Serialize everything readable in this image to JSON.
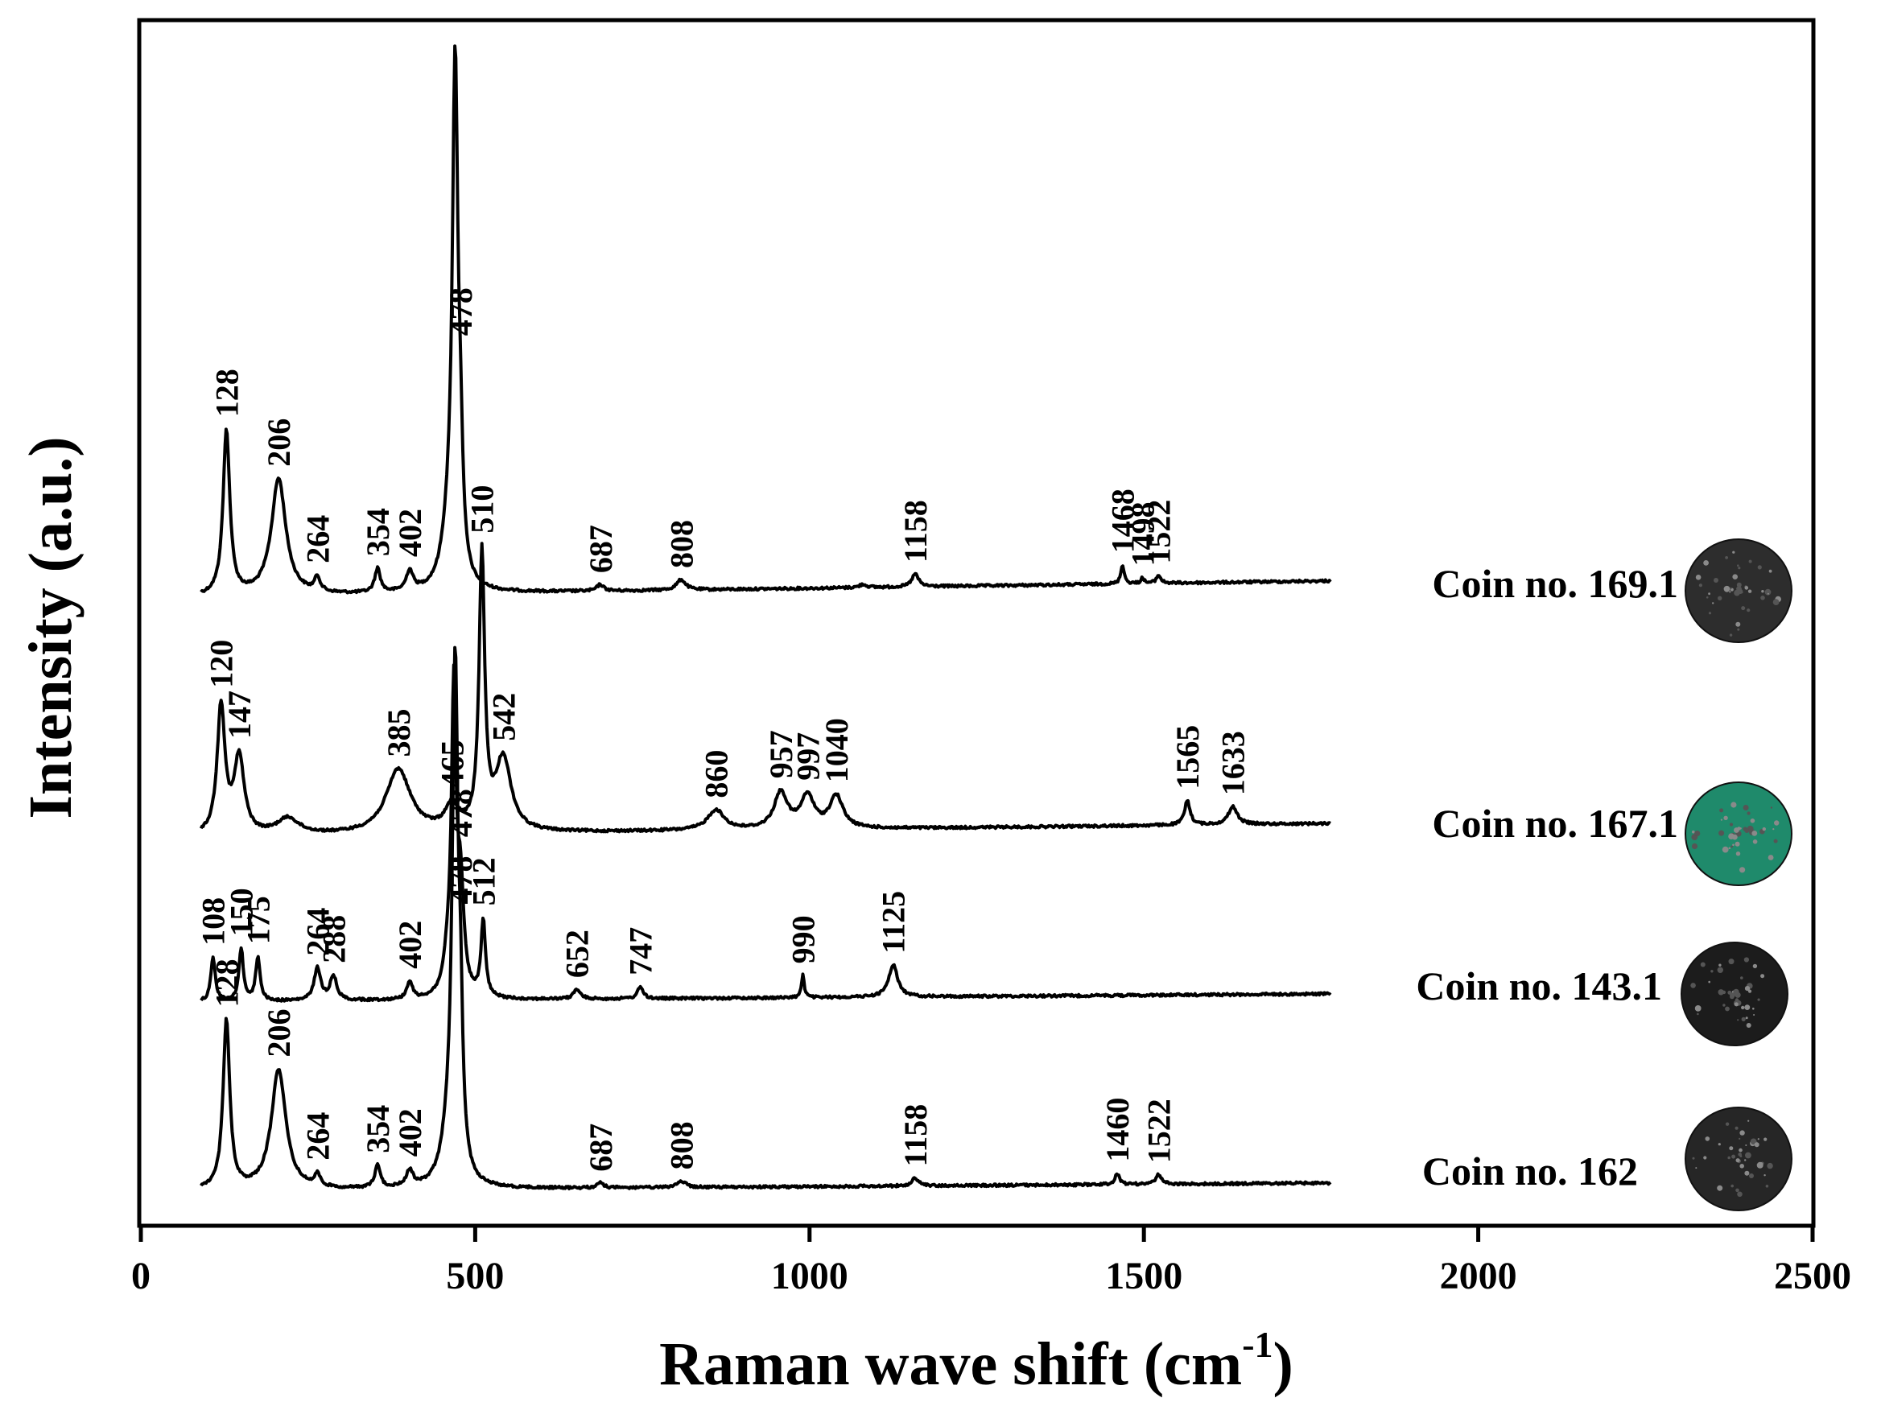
{
  "chart_data": {
    "type": "line",
    "title": "",
    "xlabel": "Raman wave shift (cm",
    "xlabel_sup": "-1",
    "xlabel_end": ")",
    "ylabel": "Intensity (a.u.)",
    "xlim": [
      0,
      2500
    ],
    "x_ticks": [
      0,
      500,
      1000,
      1500,
      2000,
      2500
    ],
    "y_ticks": [],
    "grid": false,
    "legend": "none",
    "series": [
      {
        "name": "Coin no. 169.1",
        "coin_color": "#2d2d2d",
        "x_range": [
          90,
          1780
        ],
        "baseline": 0,
        "peaks": [
          {
            "x": 128,
            "h": 2.05,
            "w": 6,
            "label": "128"
          },
          {
            "x": 206,
            "h": 1.45,
            "w": 13,
            "label": "206"
          },
          {
            "x": 264,
            "h": 0.18,
            "w": 5,
            "label": "264"
          },
          {
            "x": 354,
            "h": 0.3,
            "w": 5,
            "label": "354"
          },
          {
            "x": 402,
            "h": 0.25,
            "w": 6,
            "label": "402"
          },
          {
            "x": 460,
            "h": 0.6,
            "w": 12,
            "label": ""
          },
          {
            "x": 470,
            "h": 6.3,
            "w": 5,
            "label": ""
          },
          {
            "x": 478,
            "h": 1.1,
            "w": 4,
            "label": "478"
          },
          {
            "x": 687,
            "h": 0.08,
            "w": 6,
            "label": "687"
          },
          {
            "x": 808,
            "h": 0.13,
            "w": 8,
            "label": "808"
          },
          {
            "x": 1080,
            "h": 0.04,
            "w": 6,
            "label": ""
          },
          {
            "x": 1158,
            "h": 0.16,
            "w": 6,
            "label": "1158"
          },
          {
            "x": 1468,
            "h": 0.24,
            "w": 3,
            "label": "1468"
          },
          {
            "x": 1498,
            "h": 0.07,
            "w": 3,
            "label": "1498"
          },
          {
            "x": 1522,
            "h": 0.1,
            "w": 4,
            "label": "1522"
          }
        ]
      },
      {
        "name": "Coin no. 167.1",
        "coin_color": "#1f8a6b",
        "x_range": [
          90,
          1780
        ],
        "baseline": 0,
        "peaks": [
          {
            "x": 120,
            "h": 1.6,
            "w": 7,
            "label": "120"
          },
          {
            "x": 147,
            "h": 0.95,
            "w": 9,
            "label": "147"
          },
          {
            "x": 220,
            "h": 0.2,
            "w": 20,
            "label": ""
          },
          {
            "x": 385,
            "h": 0.8,
            "w": 22,
            "label": "385"
          },
          {
            "x": 465,
            "h": 0.3,
            "w": 12,
            "label": "465"
          },
          {
            "x": 510,
            "h": 3.4,
            "w": 5,
            "label": "510"
          },
          {
            "x": 542,
            "h": 0.9,
            "w": 14,
            "label": "542"
          },
          {
            "x": 860,
            "h": 0.25,
            "w": 15,
            "label": "860"
          },
          {
            "x": 957,
            "h": 0.45,
            "w": 12,
            "label": "957"
          },
          {
            "x": 997,
            "h": 0.4,
            "w": 12,
            "label": "997"
          },
          {
            "x": 1040,
            "h": 0.4,
            "w": 12,
            "label": "1040"
          },
          {
            "x": 1565,
            "h": 0.3,
            "w": 5,
            "label": "1565"
          },
          {
            "x": 1633,
            "h": 0.22,
            "w": 8,
            "label": "1633"
          }
        ]
      },
      {
        "name": "Coin no. 143.1",
        "coin_color": "#1c1c1c",
        "x_range": [
          90,
          1780
        ],
        "baseline": 0,
        "peaks": [
          {
            "x": 108,
            "h": 0.55,
            "w": 4,
            "label": "108"
          },
          {
            "x": 150,
            "h": 0.65,
            "w": 4,
            "label": "150"
          },
          {
            "x": 175,
            "h": 0.55,
            "w": 4,
            "label": "175"
          },
          {
            "x": 264,
            "h": 0.4,
            "w": 6,
            "label": "264"
          },
          {
            "x": 288,
            "h": 0.3,
            "w": 6,
            "label": "288"
          },
          {
            "x": 402,
            "h": 0.22,
            "w": 5,
            "label": "402"
          },
          {
            "x": 460,
            "h": 0.45,
            "w": 8,
            "label": ""
          },
          {
            "x": 468,
            "h": 3.6,
            "w": 4,
            "label": ""
          },
          {
            "x": 478,
            "h": 1.3,
            "w": 6,
            "label": "478"
          },
          {
            "x": 512,
            "h": 0.95,
            "w": 4,
            "label": "512"
          },
          {
            "x": 652,
            "h": 0.12,
            "w": 6,
            "label": "652"
          },
          {
            "x": 747,
            "h": 0.15,
            "w": 5,
            "label": "747"
          },
          {
            "x": 990,
            "h": 0.28,
            "w": 2.5,
            "label": "990"
          },
          {
            "x": 1125,
            "h": 0.4,
            "w": 8,
            "label": "1125"
          }
        ]
      },
      {
        "name": "Coin no. 162",
        "coin_color": "#262626",
        "x_range": [
          90,
          1780
        ],
        "baseline": 0,
        "peaks": [
          {
            "x": 128,
            "h": 2.1,
            "w": 6,
            "label": "128"
          },
          {
            "x": 206,
            "h": 1.5,
            "w": 13,
            "label": "206"
          },
          {
            "x": 264,
            "h": 0.15,
            "w": 5,
            "label": "264"
          },
          {
            "x": 354,
            "h": 0.28,
            "w": 5,
            "label": "354"
          },
          {
            "x": 402,
            "h": 0.2,
            "w": 6,
            "label": "402"
          },
          {
            "x": 460,
            "h": 0.5,
            "w": 12,
            "label": ""
          },
          {
            "x": 470,
            "h": 6.2,
            "w": 5,
            "label": ""
          },
          {
            "x": 478,
            "h": 1.5,
            "w": 4,
            "label": "478"
          },
          {
            "x": 687,
            "h": 0.06,
            "w": 6,
            "label": "687"
          },
          {
            "x": 808,
            "h": 0.08,
            "w": 8,
            "label": "808"
          },
          {
            "x": 1158,
            "h": 0.1,
            "w": 6,
            "label": "1158"
          },
          {
            "x": 1460,
            "h": 0.14,
            "w": 4,
            "label": "1460"
          },
          {
            "x": 1522,
            "h": 0.12,
            "w": 5,
            "label": "1522"
          }
        ]
      }
    ]
  }
}
